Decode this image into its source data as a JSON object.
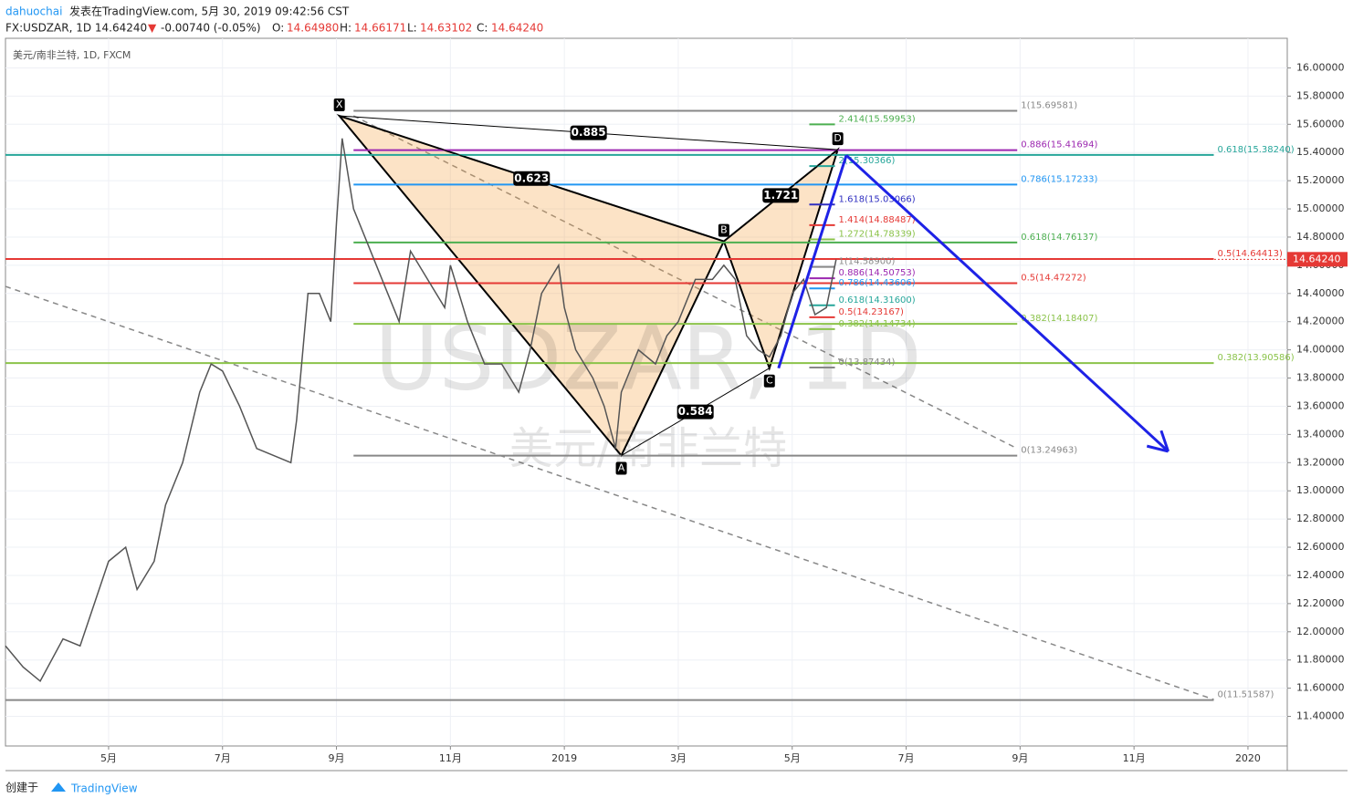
{
  "header": {
    "author": "dahuochai",
    "published": "发表在TradingView.com, 5月 30, 2019 09:42:56 CST",
    "symbol": "FX:USDZAR, 1D 14.64240",
    "arrow": "▼",
    "change": "-0.00740 (-0.05%)",
    "o_label": "O:",
    "open": "14.64980",
    "h_label": "H:",
    "high": "14.66171",
    "l_label": "L:",
    "low": "14.63102",
    "c_label": "C:",
    "close": "14.64240"
  },
  "footer": {
    "created": "创建于",
    "brand": "TradingView"
  },
  "chart_data": {
    "type": "line",
    "legend": "美元/南非兰特, 1D, FXCM",
    "watermark": "USDZAR, 1D",
    "watermark_sub": "美元/南非兰特",
    "color": "#555555",
    "x": [
      -1.81,
      -1.5,
      -1.2,
      -0.8,
      -0.5,
      0,
      0.3,
      0.5,
      0.8,
      1,
      1.3,
      1.6,
      1.8,
      2,
      2.3,
      2.6,
      2.9,
      3.2,
      3.3,
      3.5,
      3.7,
      3.9,
      4,
      4.1,
      4.3,
      4.6,
      4.9,
      5.1,
      5.3,
      5.6,
      5.9,
      6,
      6.3,
      6.6,
      6.9,
      7.2,
      7.4,
      7.6,
      7.9,
      8,
      8.2,
      8.5,
      8.7,
      8.9,
      9,
      9.3,
      9.6,
      9.8,
      10,
      10.3,
      10.6,
      10.8,
      11,
      11.2,
      11.4,
      11.6,
      11.8,
      12,
      12.2,
      12.4,
      12.6,
      12.77
    ],
    "values": [
      11.9,
      11.75,
      11.65,
      11.95,
      11.9,
      12.5,
      12.6,
      12.3,
      12.5,
      12.9,
      13.2,
      13.7,
      13.9,
      13.85,
      13.6,
      13.3,
      13.25,
      13.2,
      13.5,
      14.4,
      14.4,
      14.2,
      14.9,
      15.5,
      15.0,
      14.7,
      14.4,
      14.2,
      14.7,
      14.5,
      14.3,
      14.6,
      14.2,
      13.9,
      13.9,
      13.7,
      14.0,
      14.4,
      14.6,
      14.3,
      14.0,
      13.8,
      13.6,
      13.3,
      13.7,
      14.0,
      13.9,
      14.1,
      14.2,
      14.5,
      14.5,
      14.6,
      14.5,
      14.1,
      14.0,
      13.95,
      14.1,
      14.4,
      14.5,
      14.25,
      14.3,
      14.64
    ],
    "last_price": {
      "value": 14.6424,
      "label": "14.64240"
    },
    "ylim": [
      11.19,
      16.21
    ],
    "xlim": [
      -1.81,
      20.69
    ],
    "yticks": [
      {
        "value": 11.4,
        "label": "11.40000"
      },
      {
        "value": 11.6,
        "label": "11.60000"
      },
      {
        "value": 11.8,
        "label": "11.80000"
      },
      {
        "value": 12,
        "label": "12.00000"
      },
      {
        "value": 12.2,
        "label": "12.20000"
      },
      {
        "value": 12.4,
        "label": "12.40000"
      },
      {
        "value": 12.6,
        "label": "12.60000"
      },
      {
        "value": 12.8,
        "label": "12.80000"
      },
      {
        "value": 13,
        "label": "13.00000"
      },
      {
        "value": 13.2,
        "label": "13.20000"
      },
      {
        "value": 13.4,
        "label": "13.40000"
      },
      {
        "value": 13.6,
        "label": "13.60000"
      },
      {
        "value": 13.8,
        "label": "13.80000"
      },
      {
        "value": 14,
        "label": "14.00000"
      },
      {
        "value": 14.2,
        "label": "14.20000"
      },
      {
        "value": 14.4,
        "label": "14.40000"
      },
      {
        "value": 14.6,
        "label": "14.60000"
      },
      {
        "value": 14.8,
        "label": "14.80000"
      },
      {
        "value": 15,
        "label": "15.00000"
      },
      {
        "value": 15.2,
        "label": "15.20000"
      },
      {
        "value": 15.4,
        "label": "15.40000"
      },
      {
        "value": 15.6,
        "label": "15.60000"
      },
      {
        "value": 15.8,
        "label": "15.80000"
      },
      {
        "value": 16,
        "label": "16.00000"
      }
    ],
    "xticks": [
      {
        "value": 0,
        "label": "5月"
      },
      {
        "value": 2,
        "label": "7月"
      },
      {
        "value": 4,
        "label": "9月"
      },
      {
        "value": 6,
        "label": "11月"
      },
      {
        "value": 8,
        "label": "2019"
      },
      {
        "value": 10,
        "label": "3月"
      },
      {
        "value": 12,
        "label": "5月"
      },
      {
        "value": 14,
        "label": "7月"
      },
      {
        "value": 16,
        "label": "9月"
      },
      {
        "value": 18,
        "label": "11月"
      },
      {
        "value": 20,
        "label": "2020"
      }
    ],
    "grid": true,
    "levels": [
      {
        "label": "1(15.69581)",
        "value": 15.69581,
        "color": "#888888",
        "from": 4.3,
        "to": 15.95
      },
      {
        "label": "2.414(15.59953)",
        "value": 15.59953,
        "color": "#4caf50",
        "from": 12.3,
        "to": 12.75
      },
      {
        "label": "0.886(15.41694)",
        "value": 15.41694,
        "color": "#9c27b0",
        "from": 4.3,
        "to": 15.95
      },
      {
        "label": "0.618(15.38240)",
        "value": 15.3824,
        "color": "#26a69a",
        "from": -1.81,
        "to": 19.4
      },
      {
        "label": "2(15.30366)",
        "value": 15.30366,
        "color": "#26a69a",
        "from": 12.3,
        "to": 12.75
      },
      {
        "label": "0.786(15.17233)",
        "value": 15.17233,
        "color": "#2196f3",
        "from": 4.3,
        "to": 15.95
      },
      {
        "label": "1.618(15.03066)",
        "value": 15.03066,
        "color": "#3030c0",
        "from": 12.3,
        "to": 12.75
      },
      {
        "label": "1.414(14.88487)",
        "value": 14.88487,
        "color": "#e53935",
        "from": 12.3,
        "to": 12.75
      },
      {
        "label": "1.272(14.78339)",
        "value": 14.78339,
        "color": "#8bc34a",
        "from": 12.3,
        "to": 12.75
      },
      {
        "label": "0.618(14.76137)",
        "value": 14.76137,
        "color": "#4caf50",
        "from": 4.3,
        "to": 15.95
      },
      {
        "label": "0.5(14.64413)",
        "value": 14.64413,
        "color": "#e53935",
        "from": -1.81,
        "to": 19.4
      },
      {
        "label": "1(14.58900)",
        "value": 14.589,
        "color": "#888888",
        "from": 12.3,
        "to": 12.75
      },
      {
        "label": "0.886(14.50753)",
        "value": 14.50753,
        "color": "#9c27b0",
        "from": 12.3,
        "to": 12.75
      },
      {
        "label": "0.5(14.47272)",
        "value": 14.47272,
        "color": "#e53935",
        "from": 4.3,
        "to": 15.95
      },
      {
        "label": "0.786(14.43606)",
        "value": 14.43606,
        "color": "#2196f3",
        "from": 12.3,
        "to": 12.75
      },
      {
        "label": "0.618(14.31600)",
        "value": 14.316,
        "color": "#26a69a",
        "from": 12.3,
        "to": 12.75
      },
      {
        "label": "0.5(14.23167)",
        "value": 14.23167,
        "color": "#e53935",
        "from": 12.3,
        "to": 12.75
      },
      {
        "label": "0.382(14.18407)",
        "value": 14.18407,
        "color": "#8bc34a",
        "from": 4.3,
        "to": 15.95
      },
      {
        "label": "0.382(14.14734)",
        "value": 14.14734,
        "color": "#8bc34a",
        "from": 12.3,
        "to": 12.75
      },
      {
        "label": "0.382(13.90586)",
        "value": 13.90586,
        "color": "#8bc34a",
        "from": -1.81,
        "to": 19.4
      },
      {
        "label": "0(13.87434)",
        "value": 13.87434,
        "color": "#888888",
        "from": 12.3,
        "to": 12.75
      },
      {
        "label": "0(13.24963)",
        "value": 13.24963,
        "color": "#888888",
        "from": 4.3,
        "to": 15.95
      },
      {
        "label": "0(11.51587)",
        "value": 11.51587,
        "color": "#888888",
        "from": -1.81,
        "to": 19.4
      }
    ],
    "pattern": {
      "points": [
        {
          "label": "X",
          "x": 4.05,
          "y": 15.66
        },
        {
          "label": "A",
          "x": 9.0,
          "y": 13.25
        },
        {
          "label": "B",
          "x": 10.8,
          "y": 14.77
        },
        {
          "label": "C",
          "x": 11.6,
          "y": 13.87
        },
        {
          "label": "D",
          "x": 12.8,
          "y": 15.42
        }
      ],
      "ratios": [
        {
          "label": "0.885",
          "from": 0,
          "to": 4
        },
        {
          "label": "0.623",
          "from": 0,
          "to": 2
        },
        {
          "label": "1.721",
          "from": 2,
          "to": 4
        },
        {
          "label": "0.584",
          "from": 1,
          "to": 3
        }
      ]
    },
    "projection": {
      "x": [
        12.95,
        18.6
      ],
      "y": [
        15.38,
        13.28
      ],
      "color": "#1e22e6"
    },
    "trendlines": [
      {
        "x": [
          -1.81,
          19.4
        ],
        "y": [
          14.45,
          11.52
        ]
      },
      {
        "x": [
          4.3,
          15.95
        ],
        "y": [
          15.66,
          13.3
        ]
      }
    ]
  }
}
